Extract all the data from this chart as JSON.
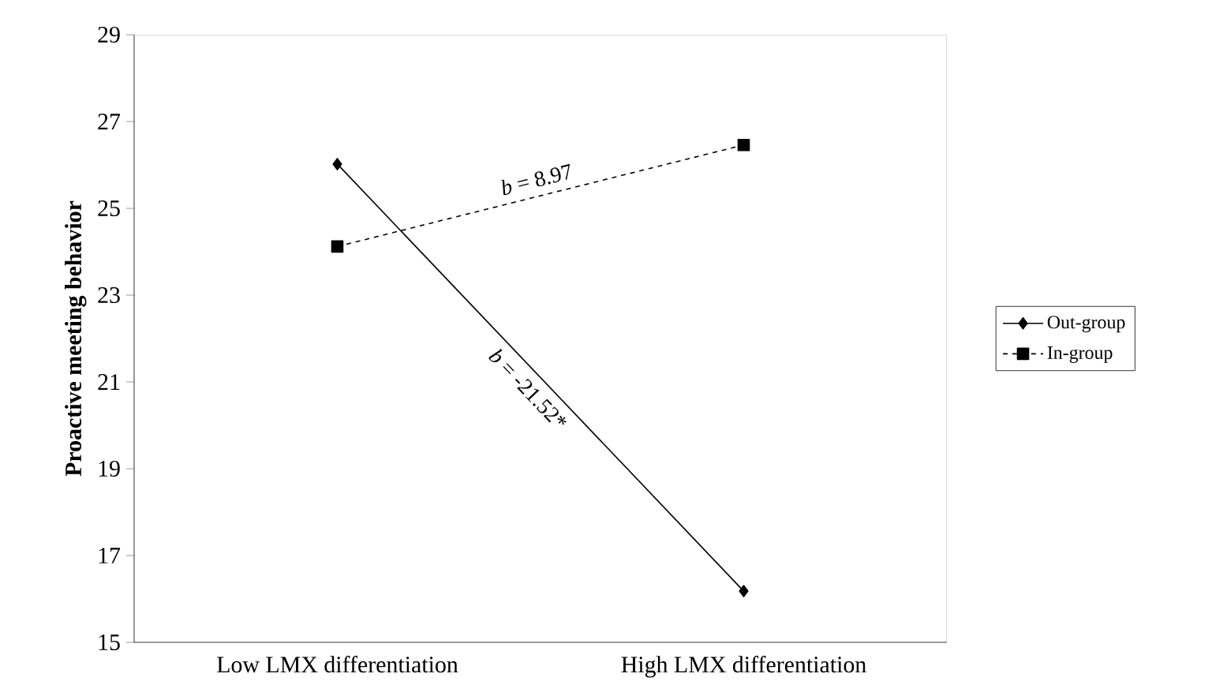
{
  "chart_data": {
    "type": "line",
    "ylabel": "Proactive meeting behavior",
    "categories": [
      "Low LMX differentiation",
      "High LMX differentiation"
    ],
    "ylim": [
      15,
      29
    ],
    "yticks": [
      15,
      17,
      19,
      21,
      23,
      25,
      27,
      29
    ],
    "legend": "right",
    "grid": false,
    "series": [
      {
        "name": "Out-group",
        "color": "#000000",
        "values": [
          26.02,
          16.18
        ],
        "marker": "diamond",
        "line_style": "solid"
      },
      {
        "name": "In-group",
        "color": "#000000",
        "values": [
          24.12,
          26.46
        ],
        "marker": "square",
        "line_style": "dashed"
      }
    ],
    "annotations": [
      "*b* = -21.52*",
      "*b* = 8.97"
    ]
  }
}
